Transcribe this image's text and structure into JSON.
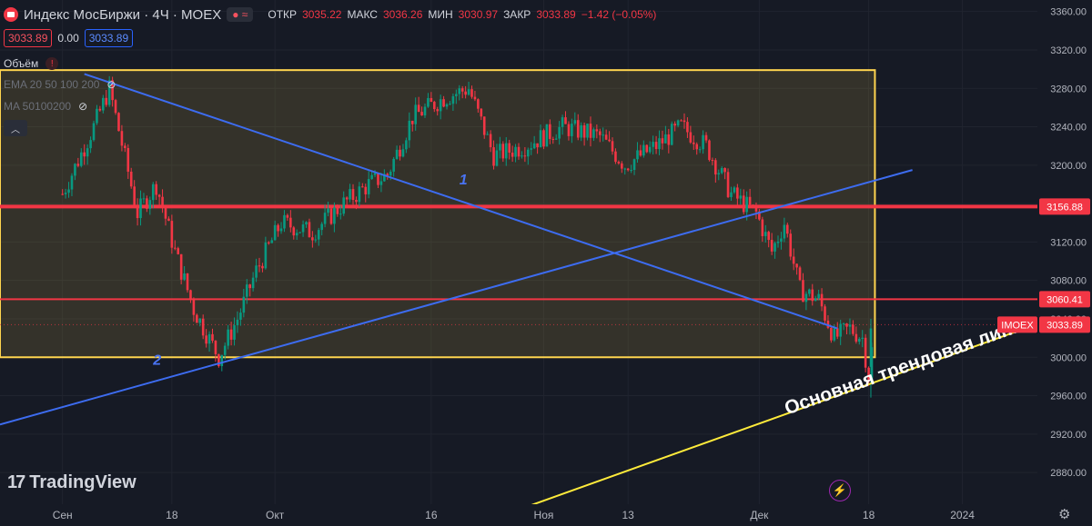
{
  "header": {
    "title": "Индекс МосБиржи · 4Ч · MOEX",
    "open_label": "ОТКР",
    "open": "3035.22",
    "high_label": "МАКС",
    "high": "3036.26",
    "low_label": "МИН",
    "low": "3030.97",
    "close_label": "ЗАКР",
    "close": "3033.89",
    "change": "−1.42 (−0.05%)",
    "sell_price": "3033.89",
    "spread": "0.00",
    "buy_price": "3033.89"
  },
  "indicators": [
    {
      "label": "Объём"
    },
    {
      "label": "EMA 20 50 100 200"
    },
    {
      "label": "MA 50100200"
    }
  ],
  "branding": {
    "logo_text": "TradingView"
  },
  "colors": {
    "background": "#161a25",
    "up": "#089981",
    "down": "#f23645",
    "zone_border": "#ffd54f",
    "trend_blue": "#3d6cf0",
    "trend_yellow": "#ffeb3b",
    "level_red": "#f23645"
  },
  "chart_data": {
    "type": "candlestick",
    "symbol": "IMOEX",
    "interval": "4Ч",
    "x_ticks": [
      {
        "label": "Сен",
        "value": 0
      },
      {
        "label": "18",
        "value": 35
      },
      {
        "label": "Окт",
        "value": 68
      },
      {
        "label": "16",
        "value": 118
      },
      {
        "label": "Ноя",
        "value": 154
      },
      {
        "label": "13",
        "value": 181
      },
      {
        "label": "Дек",
        "value": 223
      },
      {
        "label": "18",
        "value": 258
      },
      {
        "label": "2024",
        "value": 288
      }
    ],
    "y_ticks": [
      2880,
      2920,
      2960,
      3000,
      3040,
      3080,
      3120,
      3160,
      3200,
      3240,
      3280,
      3320,
      3360
    ],
    "ylim": [
      2847,
      3372
    ],
    "xlim": [
      -20,
      312
    ],
    "price_labels": [
      {
        "value": 3156.88,
        "label": "3156.88"
      },
      {
        "value": 3060.41,
        "label": "3060.41"
      },
      {
        "value": 3033.89,
        "label": "3033.89",
        "tag": "IMOEX"
      }
    ],
    "horizontal_levels": [
      3156.88,
      3060.41
    ],
    "current_price": 3033.89,
    "zone": {
      "x_start": -20,
      "x_end": 260,
      "y_low": 3000,
      "y_high": 3299
    },
    "trend_lines": [
      {
        "color": "blue",
        "points": [
          [
            7,
            3295
          ],
          [
            248,
            3030
          ]
        ],
        "label": "1",
        "label_at": [
          127,
          3180
        ]
      },
      {
        "color": "blue",
        "points": [
          [
            -20,
            2930
          ],
          [
            272,
            3195
          ]
        ],
        "label": "2",
        "label_at": [
          29,
          2992
        ]
      },
      {
        "color": "yellow",
        "points": [
          [
            150,
            2846
          ],
          [
            308,
            3030
          ]
        ],
        "label": "Основная трендовая линия",
        "label_at": [
          232,
          2940
        ]
      }
    ],
    "key_points": [
      {
        "label": "Сен",
        "x": 0,
        "y": 3170
      },
      {
        "x": 10,
        "y": 3240
      },
      {
        "x": 15,
        "y": 3280
      },
      {
        "x": 24,
        "y": 3150
      },
      {
        "x": 30,
        "y": 3180
      },
      {
        "x": 36,
        "y": 3110
      },
      {
        "x": 42,
        "y": 3050
      },
      {
        "x": 50,
        "y": 3000
      },
      {
        "x": 56,
        "y": 3040
      },
      {
        "x": 62,
        "y": 3090
      },
      {
        "x": 70,
        "y": 3140
      },
      {
        "x": 80,
        "y": 3130
      },
      {
        "x": 90,
        "y": 3160
      },
      {
        "x": 98,
        "y": 3180
      },
      {
        "x": 104,
        "y": 3190
      },
      {
        "x": 112,
        "y": 3250
      },
      {
        "x": 122,
        "y": 3270
      },
      {
        "x": 130,
        "y": 3280
      },
      {
        "x": 138,
        "y": 3210
      },
      {
        "x": 148,
        "y": 3220
      },
      {
        "x": 160,
        "y": 3240
      },
      {
        "x": 172,
        "y": 3230
      },
      {
        "x": 180,
        "y": 3200
      },
      {
        "x": 190,
        "y": 3220
      },
      {
        "x": 198,
        "y": 3240
      },
      {
        "x": 206,
        "y": 3220
      },
      {
        "x": 214,
        "y": 3170
      },
      {
        "x": 222,
        "y": 3150
      },
      {
        "x": 227,
        "y": 3110
      },
      {
        "x": 231,
        "y": 3140
      },
      {
        "x": 236,
        "y": 3070
      },
      {
        "x": 242,
        "y": 3060
      },
      {
        "x": 247,
        "y": 3020
      },
      {
        "x": 252,
        "y": 3030
      },
      {
        "x": 256,
        "y": 3020
      },
      {
        "x": 258,
        "y": 2980
      },
      {
        "x": 260,
        "y": 3034
      }
    ]
  }
}
